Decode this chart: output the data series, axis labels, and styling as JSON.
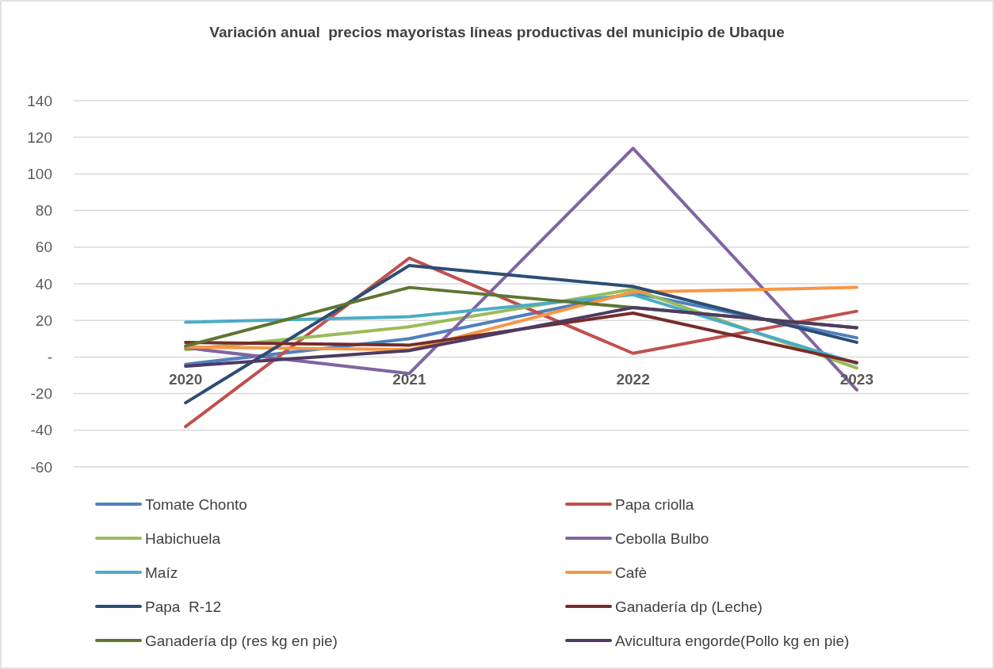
{
  "chart_data": {
    "type": "line",
    "title": "Variación anual  precios mayoristas líneas productivas del municipio de Ubaque",
    "categories": [
      "2020",
      "2021",
      "2022",
      "2023"
    ],
    "series": [
      {
        "name": "Tomate Chonto",
        "color": "#4f81bd",
        "values": [
          -4,
          10,
          35,
          10.5
        ]
      },
      {
        "name": "Papa criolla",
        "color": "#c0504d",
        "values": [
          -38,
          54,
          2,
          25
        ]
      },
      {
        "name": "Habichuela",
        "color": "#9bbb59",
        "values": [
          4,
          16.5,
          37,
          -6
        ]
      },
      {
        "name": "Cebolla Bulbo",
        "color": "#8064a2",
        "values": [
          5,
          -9,
          114,
          -18
        ]
      },
      {
        "name": "Maíz",
        "color": "#4bacc6",
        "values": [
          19,
          22,
          34,
          -3.5
        ]
      },
      {
        "name": "Cafè",
        "color": "#f79646",
        "values": [
          5.5,
          4,
          35.5,
          38
        ]
      },
      {
        "name": "Papa  R-12",
        "color": "#2c4d75",
        "values": [
          -25,
          50,
          38.5,
          8
        ]
      },
      {
        "name": "Ganadería dp (Leche)",
        "color": "#772c2a",
        "values": [
          8,
          6.5,
          24,
          -3
        ]
      },
      {
        "name": "Ganadería dp (res kg en pie)",
        "color": "#5f7530",
        "values": [
          6,
          38,
          27,
          16
        ]
      },
      {
        "name": "Avicultura engorde(Pollo kg en pie)",
        "color": "#4d3b62",
        "values": [
          -5,
          3.5,
          27,
          16
        ]
      }
    ],
    "ylim": [
      -60,
      140
    ],
    "yticks": [
      -60,
      -40,
      -20,
      {
        "value": 0,
        "label": "-"
      },
      20,
      40,
      60,
      80,
      100,
      120,
      140
    ],
    "grid": "y",
    "legend": "bottom"
  }
}
